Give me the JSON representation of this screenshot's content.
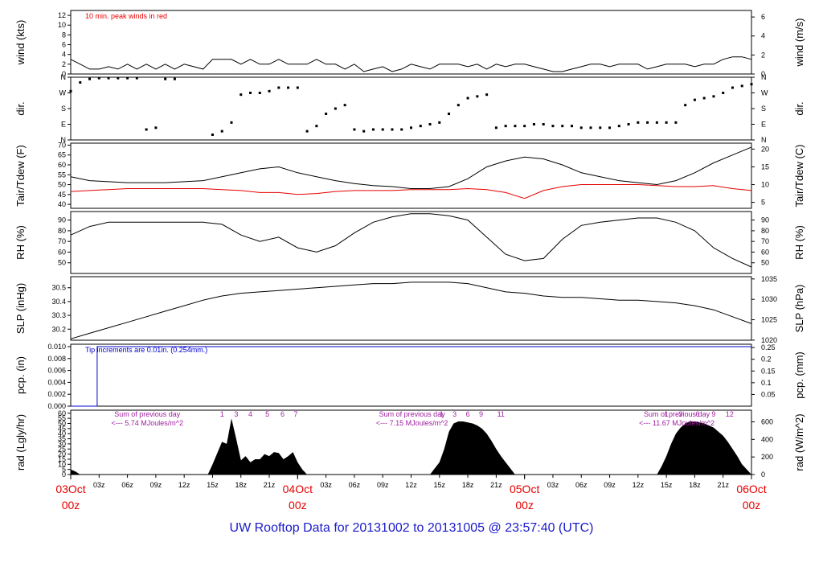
{
  "title": "UW Rooftop Data for 20131002  to  20131005 @ 23:57:40  (UTC)",
  "chart_data": {
    "type": "line",
    "x_hours_total": 72,
    "time_ticks": [
      "03z",
      "06z",
      "09z",
      "12z",
      "15z",
      "18z",
      "21z",
      "",
      "03z",
      "06z",
      "09z",
      "12z",
      "15z",
      "18z",
      "21z",
      "",
      "03z",
      "06z",
      "09z",
      "12z",
      "15z",
      "18z",
      "21z"
    ],
    "day_labels": [
      {
        "day": "03Oct",
        "hour": "00z",
        "at": 0
      },
      {
        "day": "04Oct",
        "hour": "00z",
        "at": 24
      },
      {
        "day": "05Oct",
        "hour": "00z",
        "at": 48
      },
      {
        "day": "06Oct",
        "hour": "00z",
        "at": 72
      }
    ],
    "panels": [
      {
        "id": "wind",
        "ylabel_left": "wind (kts)",
        "ylabel_right": "wind (m/s)",
        "ylim": [
          0,
          13
        ],
        "left_ticks": [
          0,
          2,
          4,
          6,
          8,
          10,
          12
        ],
        "right_ticks": [
          0,
          2,
          4,
          6
        ],
        "right_scale": 0.5144,
        "annotation": "10 min. peak winds in red",
        "series": [
          {
            "kind": "wind",
            "color": "#000000",
            "x": [
              0,
              1,
              2,
              3,
              4,
              5,
              6,
              7,
              8,
              9,
              10,
              11,
              12,
              14,
              15,
              16,
              17,
              18,
              19,
              20,
              21,
              22,
              23,
              24,
              25,
              26,
              27,
              28,
              29,
              30,
              31,
              32,
              33,
              34,
              35,
              36,
              37,
              38,
              39,
              40,
              41,
              42,
              43,
              44,
              45,
              46,
              47,
              48,
              49,
              50,
              51,
              52,
              53,
              54,
              55,
              56,
              57,
              58,
              59,
              60,
              61,
              62,
              63,
              64,
              65,
              66,
              67,
              68,
              69,
              70,
              71,
              72
            ],
            "y": [
              3,
              2,
              1,
              1,
              1.5,
              1,
              2,
              1,
              2,
              1,
              2,
              1,
              2,
              1,
              3,
              3,
              3,
              2,
              3,
              2,
              2,
              3,
              2,
              2,
              2,
              3,
              2,
              2,
              1,
              2,
              0.5,
              1,
              1.5,
              0.5,
              1,
              2,
              1.5,
              1,
              2,
              2,
              2,
              1.5,
              2,
              1,
              2,
              1.5,
              2,
              2,
              1.5,
              1,
              0.5,
              0.5,
              1,
              1.5,
              2,
              2,
              1.5,
              2,
              2,
              2,
              1,
              1.5,
              2,
              2,
              2,
              1.5,
              2,
              2,
              3,
              3.5,
              3.5,
              3
            ]
          }
        ]
      },
      {
        "id": "dir",
        "ylabel_left": "dir.",
        "ylabel_right": "dir.",
        "ylim": [
          0,
          360
        ],
        "left_ticks": [
          "N",
          "E",
          "S",
          "W",
          "N"
        ],
        "right_ticks": [
          "N",
          "E",
          "S",
          "W",
          "N"
        ],
        "series": [
          {
            "kind": "scatter",
            "color": "#000000",
            "x": [
              0,
              1,
              2,
              3,
              4,
              5,
              6,
              7,
              8,
              9,
              10,
              11,
              15,
              16,
              17,
              18,
              19,
              20,
              21,
              22,
              23,
              24,
              25,
              26,
              27,
              28,
              29,
              30,
              31,
              32,
              33,
              34,
              35,
              36,
              37,
              38,
              39,
              40,
              41,
              42,
              43,
              44,
              45,
              46,
              47,
              48,
              49,
              50,
              51,
              52,
              53,
              54,
              55,
              56,
              57,
              58,
              59,
              60,
              61,
              62,
              63,
              64,
              65,
              66,
              67,
              68,
              69,
              70,
              71,
              72
            ],
            "y": [
              280,
              330,
              350,
              355,
              355,
              355,
              355,
              355,
              60,
              70,
              350,
              350,
              30,
              50,
              100,
              260,
              270,
              270,
              280,
              300,
              300,
              300,
              50,
              80,
              150,
              180,
              200,
              60,
              50,
              60,
              60,
              60,
              60,
              70,
              80,
              90,
              100,
              150,
              200,
              240,
              250,
              260,
              70,
              80,
              80,
              80,
              90,
              90,
              80,
              80,
              80,
              70,
              70,
              70,
              70,
              80,
              90,
              100,
              100,
              100,
              100,
              100,
              200,
              230,
              240,
              250,
              270,
              300,
              310,
              320
            ]
          }
        ]
      },
      {
        "id": "temp",
        "ylabel_left": "Tair/Tdew (F)",
        "ylabel_right": "Tair/Tdew (C)",
        "ylim": [
          38,
          71
        ],
        "left_ticks": [
          40,
          45,
          50,
          55,
          60,
          65,
          70
        ],
        "right_ticks": [
          5,
          10,
          15,
          20
        ],
        "series": [
          {
            "name": "Tair",
            "kind": "line",
            "color": "#000000",
            "x": [
              0,
              2,
              4,
              6,
              8,
              10,
              12,
              14,
              16,
              18,
              20,
              22,
              24,
              26,
              28,
              30,
              32,
              34,
              36,
              38,
              40,
              42,
              44,
              46,
              48,
              50,
              52,
              54,
              56,
              58,
              60,
              62,
              64,
              66,
              68,
              70,
              72
            ],
            "y": [
              54,
              52,
              51.5,
              51,
              51,
              51,
              51.5,
              52,
              54,
              56,
              58,
              59,
              56,
              54,
              52,
              50.5,
              49.5,
              49,
              48,
              48,
              49,
              53,
              59,
              62,
              64,
              63,
              60,
              56,
              54,
              52,
              51,
              50,
              52,
              56,
              61,
              65,
              69
            ]
          },
          {
            "name": "Tdew",
            "kind": "line",
            "color": "#e60000",
            "x": [
              0,
              2,
              4,
              6,
              8,
              10,
              12,
              14,
              16,
              18,
              20,
              22,
              24,
              26,
              28,
              30,
              32,
              34,
              36,
              38,
              40,
              42,
              44,
              46,
              48,
              50,
              52,
              54,
              56,
              58,
              60,
              62,
              64,
              66,
              68,
              70,
              72
            ],
            "y": [
              46.5,
              47,
              47.5,
              48,
              48,
              48,
              48,
              48,
              47.5,
              47,
              46,
              46,
              45,
              45.5,
              46.5,
              47,
              47,
              47,
              47.5,
              47.5,
              47.5,
              48,
              47.5,
              46,
              43,
              47,
              49,
              50,
              50,
              50,
              50,
              49.5,
              49,
              49,
              49.5,
              48,
              47
            ]
          }
        ]
      },
      {
        "id": "rh",
        "ylabel_left": "RH (%)",
        "ylabel_right": "RH (%)",
        "ylim": [
          40,
          98
        ],
        "left_ticks": [
          50,
          60,
          70,
          80,
          90
        ],
        "right_ticks": [
          50,
          60,
          70,
          80,
          90
        ],
        "series": [
          {
            "kind": "line",
            "color": "#000000",
            "x": [
              0,
              2,
              4,
              6,
              8,
              10,
              12,
              14,
              16,
              18,
              20,
              22,
              24,
              26,
              28,
              30,
              32,
              34,
              36,
              38,
              40,
              42,
              44,
              46,
              48,
              50,
              52,
              54,
              56,
              58,
              60,
              62,
              64,
              66,
              68,
              70,
              72
            ],
            "y": [
              76,
              84,
              88,
              88,
              88,
              88,
              88,
              88,
              86,
              76,
              70,
              74,
              64,
              60,
              66,
              78,
              88,
              93,
              96,
              96,
              94,
              90,
              74,
              58,
              52,
              54,
              72,
              85,
              88,
              90,
              92,
              92,
              88,
              80,
              64,
              54,
              46
            ]
          }
        ]
      },
      {
        "id": "slp",
        "ylabel_left": "SLP (inHg)",
        "ylabel_right": "SLP (hPa)",
        "ylim": [
          30.12,
          30.58
        ],
        "left_ticks": [
          30.2,
          30.3,
          30.4,
          30.5
        ],
        "right_ticks": [
          1020,
          1025,
          1030,
          1035
        ],
        "series": [
          {
            "kind": "line",
            "color": "#000000",
            "x": [
              0,
              2,
              4,
              6,
              8,
              10,
              12,
              14,
              16,
              18,
              20,
              22,
              24,
              26,
              28,
              30,
              32,
              34,
              36,
              38,
              40,
              42,
              44,
              46,
              48,
              50,
              52,
              54,
              56,
              58,
              60,
              62,
              64,
              66,
              68,
              70,
              72
            ],
            "y": [
              30.13,
              30.17,
              30.21,
              30.25,
              30.29,
              30.33,
              30.37,
              30.41,
              30.44,
              30.46,
              30.47,
              30.48,
              30.49,
              30.5,
              30.51,
              30.52,
              30.53,
              30.53,
              30.54,
              30.54,
              30.54,
              30.53,
              30.5,
              30.47,
              30.46,
              30.44,
              30.43,
              30.43,
              30.42,
              30.41,
              30.41,
              30.4,
              30.39,
              30.37,
              30.34,
              30.29,
              30.24
            ]
          }
        ]
      },
      {
        "id": "pcp",
        "ylabel_left": "pcp. (in)",
        "ylabel_right": "pcp. (mm)",
        "ylim": [
          0,
          0.0104
        ],
        "left_ticks": [
          "0.000",
          "0.002",
          "0.004",
          "0.006",
          "0.008",
          "0.010"
        ],
        "right_ticks": [
          "0.05",
          "0.1",
          "0.15",
          "0.2",
          "0.25"
        ],
        "annotation": "Tip increments are 0.01in. (0.254mm.)",
        "series": [
          {
            "kind": "step",
            "color": "#0000cc",
            "x": [
              0,
              2.8,
              2.8,
              72
            ],
            "y": [
              0,
              0,
              0.01,
              0.01
            ]
          }
        ]
      },
      {
        "id": "rad",
        "ylabel_left": "rad (Lgly/hr)",
        "ylabel_right": "rad (W/m^2)",
        "ylim": [
          0,
          63
        ],
        "left_ticks": [
          0,
          5,
          10,
          15,
          20,
          25,
          30,
          35,
          40,
          45,
          50,
          55,
          60
        ],
        "right_ticks": [
          0,
          200,
          400,
          600
        ],
        "day_notes": [
          {
            "line1": "Sum of previous day",
            "line2": "<--- 5.74 MJoules/m^2",
            "at": 3
          },
          {
            "line1": "Sum of previous day",
            "line2": "<--- 7.15 MJoules/m^2",
            "at": 31
          },
          {
            "line1": "Sum of previous day",
            "line2": "<--- 11.67 MJoules/m^2",
            "at": 59
          }
        ],
        "hour_marks": [
          {
            "label": "1",
            "at": 16
          },
          {
            "label": "3",
            "at": 17.5
          },
          {
            "label": "4",
            "at": 19
          },
          {
            "label": "5",
            "at": 20.8
          },
          {
            "label": "6",
            "at": 22.4
          },
          {
            "label": "7",
            "at": 23.8
          },
          {
            "label": "1",
            "at": 39.2
          },
          {
            "label": "3",
            "at": 40.6
          },
          {
            "label": "6",
            "at": 42
          },
          {
            "label": "9",
            "at": 43.4
          },
          {
            "label": "11",
            "at": 45.5
          },
          {
            "label": "1",
            "at": 63
          },
          {
            "label": "3",
            "at": 64.5
          },
          {
            "label": "6",
            "at": 66.3
          },
          {
            "label": "9",
            "at": 68
          },
          {
            "label": "12",
            "at": 69.7
          }
        ],
        "series": [
          {
            "kind": "area",
            "color": "#000000",
            "x": [
              0,
              0.5,
              1,
              14.5,
              15,
              16,
              16.5,
              17,
              17.5,
              18,
              18.5,
              19,
              19.5,
              20,
              20.5,
              21,
              21.5,
              22,
              22.5,
              23,
              23.5,
              24,
              24.5,
              25,
              38,
              38.5,
              39,
              39.5,
              40,
              40.5,
              41,
              41.5,
              42,
              42.5,
              43,
              43.5,
              44,
              44.5,
              45,
              45.5,
              46,
              46.5,
              47,
              62,
              62.5,
              63,
              63.5,
              64,
              64.5,
              65,
              65.5,
              66,
              66.5,
              67,
              67.5,
              68,
              68.5,
              69,
              69.5,
              70,
              70.5,
              71,
              72
            ],
            "y": [
              5,
              3,
              0,
              0,
              10,
              32,
              30,
              55,
              35,
              14,
              18,
              12,
              15,
              15,
              20,
              18,
              22,
              21,
              15,
              18,
              22,
              12,
              5,
              0,
              0,
              6,
              12,
              25,
              42,
              50,
              52,
              52,
              51,
              50,
              48,
              45,
              40,
              33,
              25,
              18,
              12,
              6,
              0,
              0,
              8,
              18,
              30,
              40,
              46,
              50,
              52,
              52,
              51,
              50,
              48,
              46,
              42,
              38,
              32,
              25,
              18,
              10,
              0
            ]
          }
        ]
      }
    ]
  }
}
